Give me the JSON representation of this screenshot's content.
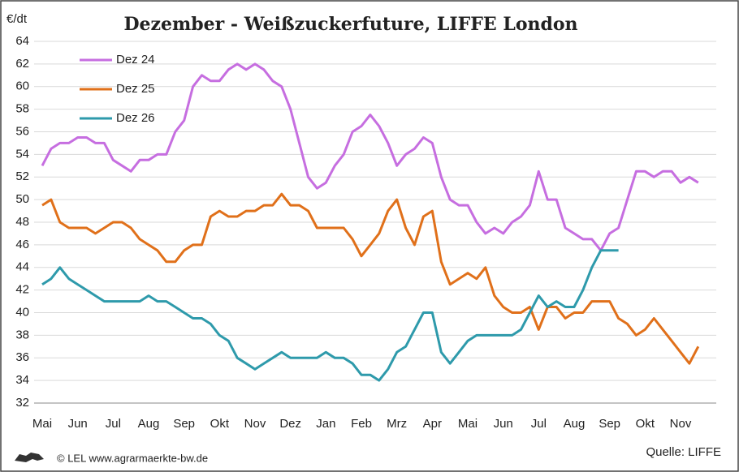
{
  "chart_data": {
    "type": "line",
    "title": "Dezember - Weißzuckerfuture, LIFFE London",
    "y_label": "€/dt",
    "categories": [
      "Mai",
      null,
      null,
      null,
      "Jun",
      null,
      null,
      null,
      "Jul",
      null,
      null,
      null,
      "Aug",
      null,
      null,
      null,
      "Sep",
      null,
      null,
      null,
      "Okt",
      null,
      null,
      null,
      "Nov",
      null,
      null,
      null,
      "Dez",
      null,
      null,
      null,
      "Jan",
      null,
      null,
      null,
      "Feb",
      null,
      null,
      null,
      "Mrz",
      null,
      null,
      null,
      "Apr",
      null,
      null,
      null,
      "Mai",
      null,
      null,
      null,
      "Jun",
      null,
      null,
      null,
      "Jul",
      null,
      null,
      null,
      "Aug",
      null,
      null,
      null,
      "Sep",
      null,
      null,
      null,
      "Okt",
      null,
      null,
      null,
      "Nov",
      null,
      null
    ],
    "series": [
      {
        "name": "Dez 24",
        "color": "#c66ee0",
        "values": [
          53,
          54.5,
          55,
          55,
          55.5,
          55.5,
          55,
          55,
          53.5,
          53,
          52.5,
          53.5,
          53.5,
          54,
          54,
          56,
          57,
          60,
          61,
          60.5,
          60.5,
          61.5,
          62,
          61.5,
          62,
          61.5,
          60.5,
          60,
          58,
          55,
          52,
          51,
          51.5,
          53,
          54,
          56,
          56.5,
          57.5,
          56.5,
          55,
          53,
          54,
          54.5,
          55.5,
          55,
          52,
          50,
          49.5,
          49.5,
          48,
          47,
          47.5,
          47,
          48,
          48.5,
          49.5,
          52.5,
          50,
          50,
          47.5,
          47,
          46.5,
          46.5,
          45.5,
          47,
          47.5,
          50,
          52.5,
          52.5,
          52,
          52.5,
          52.5,
          51.5,
          52,
          51.5
        ]
      },
      {
        "name": "Dez 25",
        "color": "#e0701a",
        "values": [
          49.5,
          50,
          48,
          47.5,
          47.5,
          47.5,
          47,
          47.5,
          48,
          48,
          47.5,
          46.5,
          46,
          45.5,
          44.5,
          44.5,
          45.5,
          46,
          46,
          48.5,
          49,
          48.5,
          48.5,
          49,
          49,
          49.5,
          49.5,
          50.5,
          49.5,
          49.5,
          49,
          47.5,
          47.5,
          47.5,
          47.5,
          46.5,
          45,
          46,
          47,
          49,
          50,
          47.5,
          46,
          48.5,
          49,
          44.5,
          42.5,
          43,
          43.5,
          43,
          44,
          41.5,
          40.5,
          40,
          40,
          40.5,
          38.5,
          40.5,
          40.5,
          39.5,
          40,
          40,
          41,
          41,
          41,
          39.5,
          39,
          38,
          38.5,
          39.5,
          38.5,
          37.5,
          36.5,
          35.5,
          37
        ]
      },
      {
        "name": "Dez 26",
        "color": "#2e9aab",
        "values": [
          42.5,
          43,
          44,
          43,
          42.5,
          42,
          41.5,
          41,
          41,
          41,
          41,
          41,
          41.5,
          41,
          41,
          40.5,
          40,
          39.5,
          39.5,
          39,
          38,
          37.5,
          36,
          35.5,
          35,
          35.5,
          36,
          36.5,
          36,
          36,
          36,
          36,
          36.5,
          36,
          36,
          35.5,
          34.5,
          34.5,
          34,
          35,
          36.5,
          37,
          38.5,
          40,
          40,
          36.5,
          35.5,
          36.5,
          37.5,
          38,
          38,
          38,
          38,
          38,
          38.5,
          40,
          41.5,
          40.5,
          41,
          40.5,
          40.5,
          42,
          44,
          45.5,
          45.5,
          45.5,
          null,
          null,
          null,
          null,
          null,
          null,
          null,
          null,
          null
        ]
      }
    ],
    "ylim": [
      32,
      64
    ],
    "yticks": [
      32,
      34,
      36,
      38,
      40,
      42,
      44,
      46,
      48,
      50,
      52,
      54,
      56,
      58,
      60,
      62,
      64
    ],
    "grid": true,
    "legend": "upper left",
    "footer": "© LEL www.agrarmaerkte-bw.de",
    "source": "Quelle: LIFFE"
  }
}
